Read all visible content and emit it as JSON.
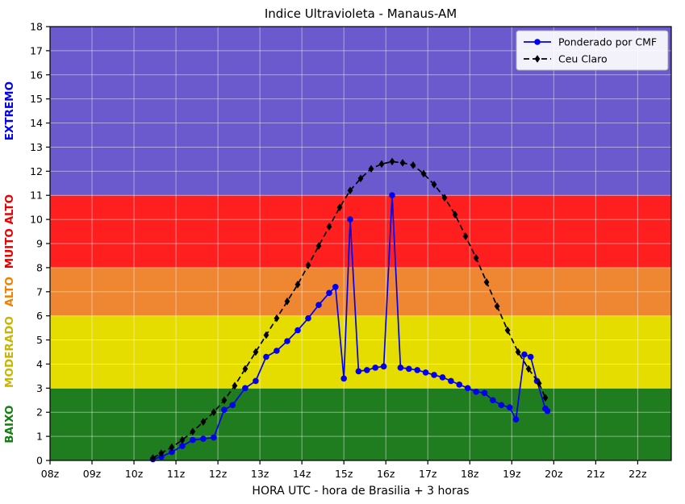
{
  "chart_data": {
    "type": "line",
    "title": "Indice Ultravioleta - Manaus-AM",
    "xlabel": "HORA UTC - hora de Brasilia + 3 horas",
    "ylabel": "",
    "xlim": [
      8,
      22.8
    ],
    "ylim": [
      0,
      18
    ],
    "grid": true,
    "grid_color": "#ffffff",
    "frame_color": "#000000",
    "x_ticks": [
      {
        "value": 8,
        "label": "08z"
      },
      {
        "value": 9,
        "label": "09z"
      },
      {
        "value": 10,
        "label": "10z"
      },
      {
        "value": 11,
        "label": "11z"
      },
      {
        "value": 12,
        "label": "12z"
      },
      {
        "value": 13,
        "label": "13z"
      },
      {
        "value": 14,
        "label": "14z"
      },
      {
        "value": 15,
        "label": "15z"
      },
      {
        "value": 16,
        "label": "16z"
      },
      {
        "value": 17,
        "label": "17z"
      },
      {
        "value": 18,
        "label": "18z"
      },
      {
        "value": 19,
        "label": "19z"
      },
      {
        "value": 20,
        "label": "20z"
      },
      {
        "value": 21,
        "label": "21z"
      },
      {
        "value": 22,
        "label": "22z"
      }
    ],
    "y_ticks": [
      0,
      1,
      2,
      3,
      4,
      5,
      6,
      7,
      8,
      9,
      10,
      11,
      12,
      13,
      14,
      15,
      16,
      17,
      18
    ],
    "bands": [
      {
        "label": "BAIXO",
        "from": 0,
        "to": 3,
        "color": "#1f7d1f",
        "label_color": "#118011"
      },
      {
        "label": "MODERADO",
        "from": 3,
        "to": 6,
        "color": "#e5dc00",
        "label_color": "#c9b400"
      },
      {
        "label": "ALTO",
        "from": 6,
        "to": 8,
        "color": "#ef8632",
        "label_color": "#ef8000"
      },
      {
        "label": "MUITO ALTO",
        "from": 8,
        "to": 11,
        "color": "#ff1f1f",
        "label_color": "#e80000"
      },
      {
        "label": "EXTREMO",
        "from": 11,
        "to": 18,
        "color": "#6a5acd",
        "label_color": "#0000ee"
      }
    ],
    "legend": {
      "position": "top-right",
      "entries": [
        "Ponderado por CMF",
        "Ceu Claro"
      ]
    },
    "series": [
      {
        "name": "Ponderado por CMF",
        "color": "#0000ee",
        "marker": "circle",
        "line": "solid",
        "points": [
          [
            10.45,
            0.05
          ],
          [
            10.65,
            0.15
          ],
          [
            10.9,
            0.35
          ],
          [
            11.15,
            0.6
          ],
          [
            11.4,
            0.85
          ],
          [
            11.65,
            0.9
          ],
          [
            11.9,
            0.95
          ],
          [
            12.15,
            2.1
          ],
          [
            12.35,
            2.3
          ],
          [
            12.65,
            3.0
          ],
          [
            12.9,
            3.3
          ],
          [
            13.15,
            4.3
          ],
          [
            13.4,
            4.55
          ],
          [
            13.65,
            4.95
          ],
          [
            13.9,
            5.4
          ],
          [
            14.15,
            5.9
          ],
          [
            14.4,
            6.45
          ],
          [
            14.65,
            6.95
          ],
          [
            14.8,
            7.2
          ],
          [
            15.0,
            3.4
          ],
          [
            15.15,
            10.0
          ],
          [
            15.35,
            3.7
          ],
          [
            15.55,
            3.75
          ],
          [
            15.75,
            3.85
          ],
          [
            15.95,
            3.9
          ],
          [
            16.15,
            11.0
          ],
          [
            16.35,
            3.85
          ],
          [
            16.55,
            3.8
          ],
          [
            16.75,
            3.75
          ],
          [
            16.95,
            3.65
          ],
          [
            17.15,
            3.55
          ],
          [
            17.35,
            3.45
          ],
          [
            17.55,
            3.3
          ],
          [
            17.75,
            3.15
          ],
          [
            17.95,
            3.0
          ],
          [
            18.15,
            2.85
          ],
          [
            18.35,
            2.8
          ],
          [
            18.55,
            2.5
          ],
          [
            18.75,
            2.3
          ],
          [
            18.95,
            2.2
          ],
          [
            19.1,
            1.7
          ],
          [
            19.3,
            4.4
          ],
          [
            19.45,
            4.3
          ],
          [
            19.6,
            3.3
          ],
          [
            19.8,
            2.15
          ],
          [
            19.85,
            2.05
          ]
        ]
      },
      {
        "name": "Ceu Claro",
        "color": "#000000",
        "marker": "diamond",
        "line": "dashed",
        "points": [
          [
            10.45,
            0.1
          ],
          [
            10.65,
            0.3
          ],
          [
            10.9,
            0.55
          ],
          [
            11.15,
            0.85
          ],
          [
            11.4,
            1.2
          ],
          [
            11.65,
            1.6
          ],
          [
            11.9,
            2.0
          ],
          [
            12.15,
            2.5
          ],
          [
            12.4,
            3.1
          ],
          [
            12.65,
            3.8
          ],
          [
            12.9,
            4.5
          ],
          [
            13.15,
            5.2
          ],
          [
            13.4,
            5.9
          ],
          [
            13.65,
            6.6
          ],
          [
            13.9,
            7.3
          ],
          [
            14.15,
            8.1
          ],
          [
            14.4,
            8.9
          ],
          [
            14.65,
            9.7
          ],
          [
            14.9,
            10.5
          ],
          [
            15.15,
            11.2
          ],
          [
            15.4,
            11.7
          ],
          [
            15.65,
            12.1
          ],
          [
            15.9,
            12.3
          ],
          [
            16.15,
            12.4
          ],
          [
            16.4,
            12.35
          ],
          [
            16.65,
            12.25
          ],
          [
            16.9,
            11.9
          ],
          [
            17.15,
            11.45
          ],
          [
            17.4,
            10.9
          ],
          [
            17.65,
            10.2
          ],
          [
            17.9,
            9.3
          ],
          [
            18.15,
            8.4
          ],
          [
            18.4,
            7.4
          ],
          [
            18.65,
            6.4
          ],
          [
            18.9,
            5.4
          ],
          [
            19.15,
            4.5
          ],
          [
            19.4,
            3.8
          ],
          [
            19.65,
            3.2
          ],
          [
            19.8,
            2.6
          ]
        ]
      }
    ]
  }
}
